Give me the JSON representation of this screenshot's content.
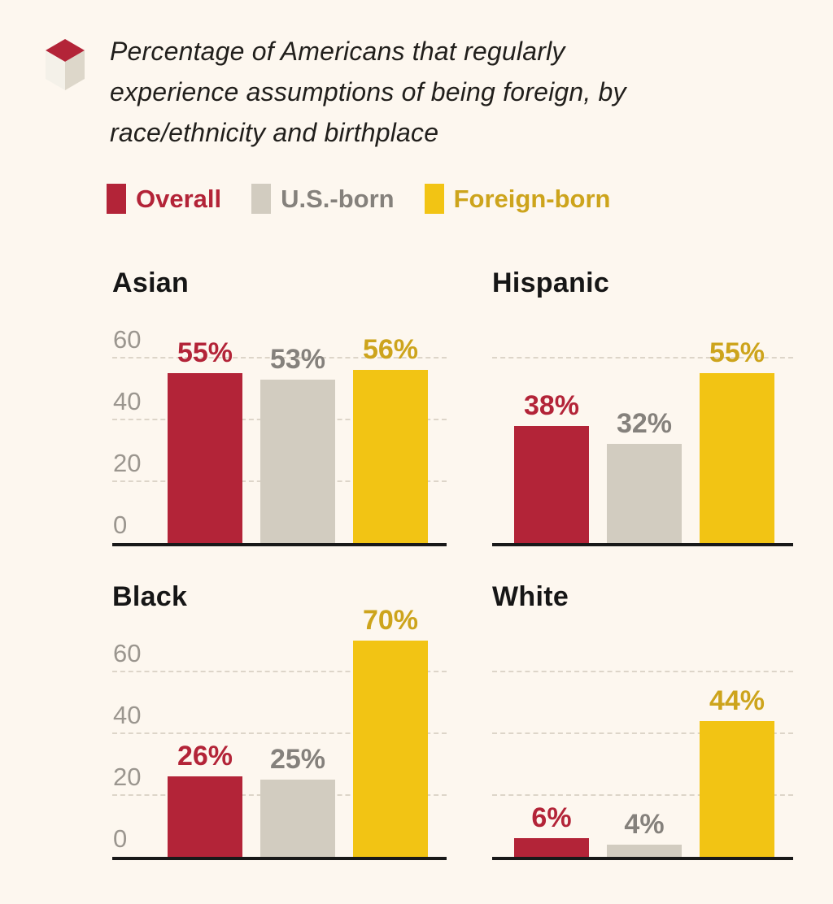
{
  "page": {
    "background": "#fdf7ef"
  },
  "header": {
    "logo": "red-top-cube",
    "title_lines": [
      "Percentage of Americans that regularly",
      "experience assumptions of being foreign, by",
      "race/ethnicity and birthplace"
    ]
  },
  "legend": [
    {
      "label": "Overall",
      "color": "#b32438",
      "text_color": "#b32438"
    },
    {
      "label": "U.S.-born",
      "color": "#d2ccc0",
      "text_color": "#85817c"
    },
    {
      "label": "Foreign-born",
      "color": "#f2c414",
      "text_color": "#cda41c"
    }
  ],
  "chart_data": {
    "type": "bar",
    "title": "Percentage of Americans that regularly experience assumptions of being foreign, by race/ethnicity and birthplace",
    "unit": "%",
    "legend_position": "top",
    "grid": "dashed horizontal gridlines, labels above lines",
    "ylim": [
      0,
      70
    ],
    "yticks": [
      0,
      20,
      40,
      60
    ],
    "series": [
      {
        "name": "Overall",
        "color": "#b32438",
        "label_color": "#b32438"
      },
      {
        "name": "U.S.-born",
        "color": "#d2ccc0",
        "label_color": "#85817c"
      },
      {
        "name": "Foreign-born",
        "color": "#f2c414",
        "label_color": "#cda41c"
      }
    ],
    "panels": [
      {
        "category": "Asian",
        "values": [
          55,
          53,
          56
        ],
        "labels": [
          "55%",
          "53%",
          "56%"
        ],
        "show_axis_labels": true,
        "gridlines": [
          20,
          40,
          60
        ]
      },
      {
        "category": "Hispanic",
        "values": [
          38,
          32,
          55
        ],
        "labels": [
          "38%",
          "32%",
          "55%"
        ],
        "show_axis_labels": false,
        "gridlines": [
          60
        ]
      },
      {
        "category": "Black",
        "values": [
          26,
          25,
          70
        ],
        "labels": [
          "26%",
          "25%",
          "70%"
        ],
        "show_axis_labels": true,
        "gridlines": [
          20,
          40,
          60
        ]
      },
      {
        "category": "White",
        "values": [
          6,
          4,
          44
        ],
        "labels": [
          "6%",
          "4%",
          "44%"
        ],
        "show_axis_labels": false,
        "gridlines": [
          20,
          40,
          60
        ]
      }
    ]
  }
}
